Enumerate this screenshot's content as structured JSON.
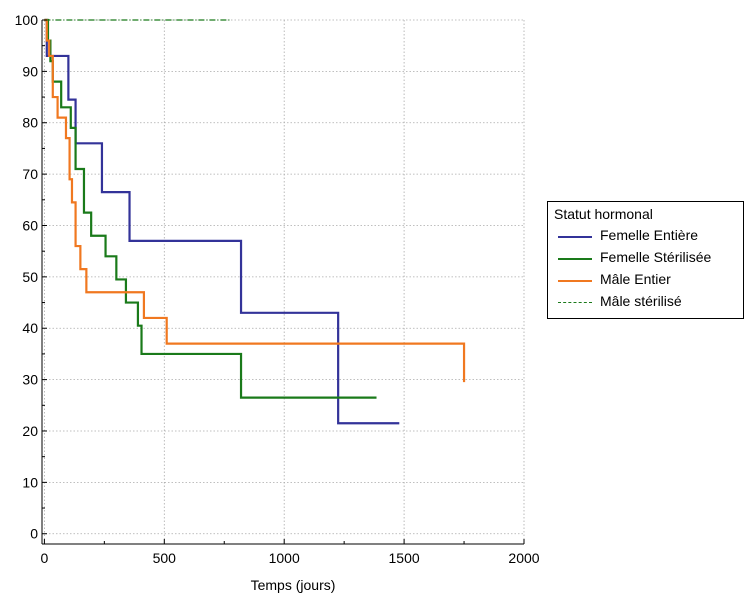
{
  "chart_data": {
    "type": "line",
    "step": true,
    "title": "",
    "xlabel": "Temps (jours)",
    "ylabel": "",
    "xlim": [
      -10,
      2000
    ],
    "ylim": [
      -2,
      100
    ],
    "xticks": [
      0,
      500,
      1000,
      1500,
      2000
    ],
    "yticks": [
      0,
      10,
      20,
      30,
      40,
      50,
      60,
      70,
      80,
      90,
      100
    ],
    "xtick_labels": [
      "0",
      "500",
      "1000",
      "1500",
      "2000"
    ],
    "ytick_labels": [
      "0",
      "10",
      "20",
      "30",
      "40",
      "50",
      "60",
      "70",
      "80",
      "90",
      "100"
    ],
    "grid": true,
    "legend": {
      "title": "Statut hormonal",
      "position": "right"
    },
    "series": [
      {
        "name": "Femelle Entière",
        "color": "#333399",
        "style": "solid",
        "x": [
          0,
          10,
          100,
          130,
          240,
          355,
          820,
          1225,
          1480
        ],
        "y": [
          100,
          93,
          84.5,
          76,
          66.5,
          57,
          43,
          21.5,
          21.5
        ]
      },
      {
        "name": "Femelle Stérilisée",
        "color": "#1a7a1a",
        "style": "solid",
        "x": [
          0,
          15,
          25,
          35,
          70,
          110,
          130,
          165,
          195,
          255,
          300,
          340,
          390,
          405,
          820,
          1385
        ],
        "y": [
          100,
          96,
          92,
          88,
          83,
          79,
          71,
          62.5,
          58,
          54,
          49.5,
          45,
          40.5,
          35,
          26.5,
          26.5
        ]
      },
      {
        "name": "Mâle Entier",
        "color": "#f07820",
        "style": "solid",
        "x": [
          0,
          10,
          20,
          35,
          55,
          90,
          105,
          115,
          130,
          150,
          175,
          415,
          510,
          1750
        ],
        "y": [
          100,
          96,
          93,
          85,
          81,
          77,
          69,
          64.5,
          56,
          51.5,
          47,
          42,
          37,
          29.5
        ]
      },
      {
        "name": "Mâle stérilisé",
        "color": "#1a7a1a",
        "style": "dashdot",
        "x": [
          0,
          780
        ],
        "y": [
          100,
          100
        ]
      }
    ]
  }
}
